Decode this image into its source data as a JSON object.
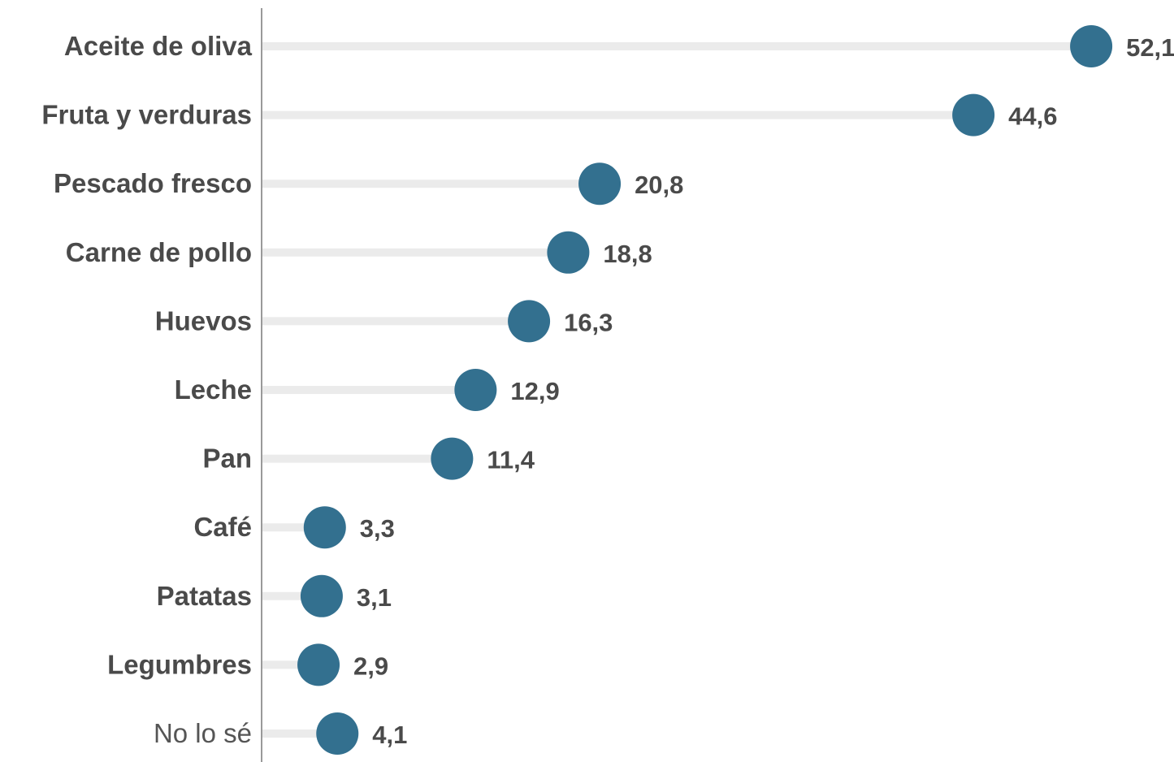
{
  "chart_data": {
    "type": "lollipop",
    "categories": [
      "Aceite de oliva",
      "Fruta y verduras",
      "Pescado fresco",
      "Carne de pollo",
      "Huevos",
      "Leche",
      "Pan",
      "Café",
      "Patatas",
      "Legumbres",
      "No lo sé"
    ],
    "values": [
      52.1,
      44.6,
      20.8,
      18.8,
      16.3,
      12.9,
      11.4,
      3.3,
      3.1,
      2.9,
      4.1
    ],
    "value_labels": [
      "52,1",
      "44,6",
      "20,8",
      "18,8",
      "16,3",
      "12,9",
      "11,4",
      "3,3",
      "3,1",
      "2,9",
      "4,1"
    ],
    "light_categories": [
      "No lo sé"
    ],
    "xlim": [
      0,
      52.1
    ],
    "grid": false,
    "legend": "none",
    "colors": {
      "dot": "#33708f",
      "stem": "#ebebeb",
      "axis": "#9a9a9a",
      "text": "#4a4a4a"
    }
  }
}
